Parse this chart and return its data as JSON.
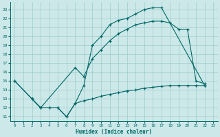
{
  "xlabel": "Humidex (Indice chaleur)",
  "bg_color": "#cce8e8",
  "line_color": "#006666",
  "grid_color": "#a0cccc",
  "xlim": [
    -0.5,
    23.5
  ],
  "ylim": [
    10.5,
    23.8
  ],
  "yticks": [
    11,
    12,
    13,
    14,
    15,
    16,
    17,
    18,
    19,
    20,
    21,
    22,
    23
  ],
  "xticks": [
    0,
    1,
    2,
    3,
    4,
    5,
    6,
    7,
    8,
    9,
    10,
    11,
    12,
    13,
    14,
    15,
    16,
    17,
    18,
    19,
    20,
    21,
    22,
    23
  ],
  "curve1_x": [
    0,
    2,
    3,
    4,
    5,
    6,
    7,
    8,
    9,
    10,
    11,
    12,
    13,
    14,
    15,
    16,
    17,
    22
  ],
  "curve1_y": [
    15,
    13,
    12,
    12,
    12,
    11,
    12.5,
    14.5,
    19,
    20,
    21.3,
    21.8,
    22.0,
    22.5,
    23.0,
    23.2,
    23.2,
    14.5
  ],
  "curve2_x": [
    0,
    2,
    3,
    7,
    8,
    9,
    10,
    11,
    12,
    13,
    14,
    15,
    16,
    17,
    18,
    19,
    20,
    21,
    22
  ],
  "curve2_y": [
    15,
    13,
    12,
    16.5,
    15.5,
    17.5,
    18.5,
    19.5,
    20.3,
    20.8,
    21.3,
    21.5,
    21.7,
    21.7,
    21.5,
    20.8,
    20.8,
    15.0,
    14.7
  ],
  "curve3_x": [
    2,
    3,
    4,
    5,
    6,
    7,
    8,
    9,
    10,
    11,
    12,
    13,
    14,
    15,
    16,
    17,
    18,
    19,
    20,
    21,
    22
  ],
  "curve3_y": [
    13,
    12,
    12,
    12,
    11,
    12.5,
    12.8,
    13.0,
    13.3,
    13.5,
    13.7,
    13.9,
    14.0,
    14.2,
    14.3,
    14.4,
    14.5,
    14.5,
    14.5,
    14.5,
    14.5
  ]
}
